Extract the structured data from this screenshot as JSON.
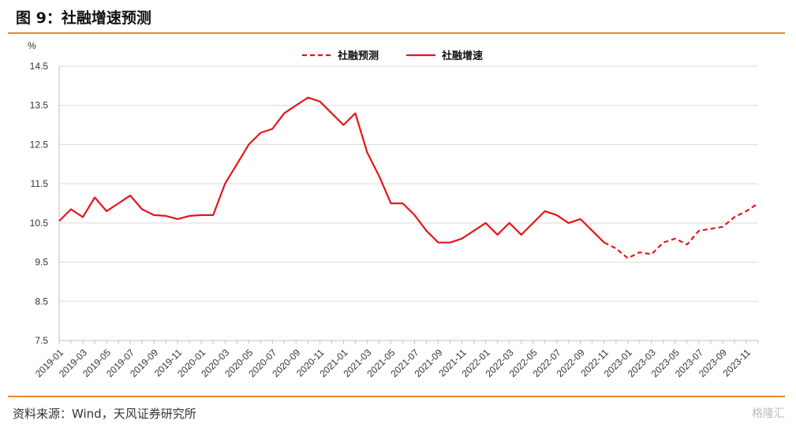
{
  "header": {
    "title": "图 9：社融增速预测"
  },
  "footer": {
    "source": "资料来源：Wind，天风证券研究所",
    "watermark": "格隆汇"
  },
  "chart_data": {
    "type": "line",
    "ylabel": "%",
    "ylim": [
      7.5,
      14.5
    ],
    "yticks": [
      7.5,
      8.5,
      9.5,
      10.5,
      11.5,
      12.5,
      13.5,
      14.5
    ],
    "grid": true,
    "legend_position": "top-center",
    "x_tick_labels": [
      "2019-01",
      "2019-03",
      "2019-05",
      "2019-07",
      "2019-09",
      "2019-11",
      "2020-01",
      "2020-03",
      "2020-05",
      "2020-07",
      "2020-09",
      "2020-11",
      "2021-01",
      "2021-03",
      "2021-05",
      "2021-07",
      "2021-09",
      "2021-11",
      "2022-01",
      "2022-03",
      "2022-05",
      "2022-07",
      "2022-09",
      "2022-11",
      "2023-01",
      "2023-03",
      "2023-05",
      "2023-07",
      "2023-09",
      "2023-11"
    ],
    "series": [
      {
        "name": "社融预测",
        "style": "dashed",
        "color": "#E8141B",
        "start_index": 46,
        "values": [
          10.0,
          9.85,
          9.6,
          9.75,
          9.7,
          10.0,
          10.1,
          9.95,
          10.3,
          10.35,
          10.4,
          10.65,
          10.8,
          11.0
        ]
      },
      {
        "name": "社融增速",
        "style": "solid",
        "color": "#E8141B",
        "start_index": 0,
        "values": [
          10.55,
          10.85,
          10.65,
          11.15,
          10.8,
          11.0,
          11.2,
          10.85,
          10.7,
          10.68,
          10.6,
          10.68,
          10.7,
          10.7,
          11.5,
          12.0,
          12.5,
          12.8,
          12.9,
          13.3,
          13.5,
          13.7,
          13.6,
          13.3,
          13.0,
          13.3,
          12.3,
          11.7,
          11.0,
          11.0,
          10.7,
          10.3,
          10.0,
          10.0,
          10.1,
          10.3,
          10.5,
          10.2,
          10.5,
          10.2,
          10.5,
          10.8,
          10.7,
          10.5,
          10.6,
          10.3,
          10.0
        ]
      }
    ]
  }
}
